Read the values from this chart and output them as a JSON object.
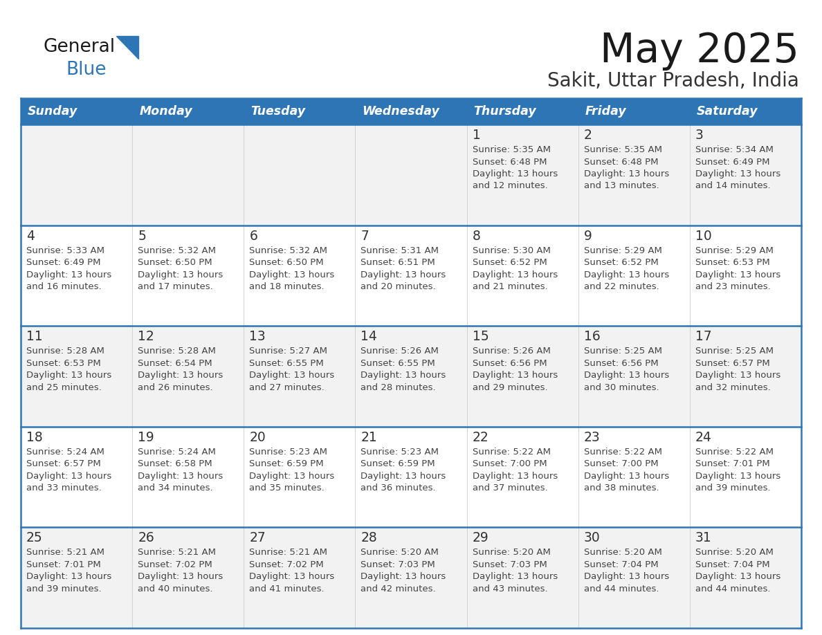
{
  "title": "May 2025",
  "subtitle": "Sakit, Uttar Pradesh, India",
  "days_of_week": [
    "Sunday",
    "Monday",
    "Tuesday",
    "Wednesday",
    "Thursday",
    "Friday",
    "Saturday"
  ],
  "header_bg": "#2E75B6",
  "header_text": "#FFFFFF",
  "row_bg_odd": "#F2F2F2",
  "row_bg_even": "#FFFFFF",
  "cell_border_color": "#2E75B6",
  "day_number_color": "#333333",
  "info_text_color": "#444444",
  "title_color": "#1a1a1a",
  "subtitle_color": "#333333",
  "logo_text_color": "#1a1a1a",
  "logo_blue_color": "#2E75B6",
  "calendar_data": [
    [
      {
        "day": null,
        "info": ""
      },
      {
        "day": null,
        "info": ""
      },
      {
        "day": null,
        "info": ""
      },
      {
        "day": null,
        "info": ""
      },
      {
        "day": 1,
        "info": "Sunrise: 5:35 AM\nSunset: 6:48 PM\nDaylight: 13 hours\nand 12 minutes."
      },
      {
        "day": 2,
        "info": "Sunrise: 5:35 AM\nSunset: 6:48 PM\nDaylight: 13 hours\nand 13 minutes."
      },
      {
        "day": 3,
        "info": "Sunrise: 5:34 AM\nSunset: 6:49 PM\nDaylight: 13 hours\nand 14 minutes."
      }
    ],
    [
      {
        "day": 4,
        "info": "Sunrise: 5:33 AM\nSunset: 6:49 PM\nDaylight: 13 hours\nand 16 minutes."
      },
      {
        "day": 5,
        "info": "Sunrise: 5:32 AM\nSunset: 6:50 PM\nDaylight: 13 hours\nand 17 minutes."
      },
      {
        "day": 6,
        "info": "Sunrise: 5:32 AM\nSunset: 6:50 PM\nDaylight: 13 hours\nand 18 minutes."
      },
      {
        "day": 7,
        "info": "Sunrise: 5:31 AM\nSunset: 6:51 PM\nDaylight: 13 hours\nand 20 minutes."
      },
      {
        "day": 8,
        "info": "Sunrise: 5:30 AM\nSunset: 6:52 PM\nDaylight: 13 hours\nand 21 minutes."
      },
      {
        "day": 9,
        "info": "Sunrise: 5:29 AM\nSunset: 6:52 PM\nDaylight: 13 hours\nand 22 minutes."
      },
      {
        "day": 10,
        "info": "Sunrise: 5:29 AM\nSunset: 6:53 PM\nDaylight: 13 hours\nand 23 minutes."
      }
    ],
    [
      {
        "day": 11,
        "info": "Sunrise: 5:28 AM\nSunset: 6:53 PM\nDaylight: 13 hours\nand 25 minutes."
      },
      {
        "day": 12,
        "info": "Sunrise: 5:28 AM\nSunset: 6:54 PM\nDaylight: 13 hours\nand 26 minutes."
      },
      {
        "day": 13,
        "info": "Sunrise: 5:27 AM\nSunset: 6:55 PM\nDaylight: 13 hours\nand 27 minutes."
      },
      {
        "day": 14,
        "info": "Sunrise: 5:26 AM\nSunset: 6:55 PM\nDaylight: 13 hours\nand 28 minutes."
      },
      {
        "day": 15,
        "info": "Sunrise: 5:26 AM\nSunset: 6:56 PM\nDaylight: 13 hours\nand 29 minutes."
      },
      {
        "day": 16,
        "info": "Sunrise: 5:25 AM\nSunset: 6:56 PM\nDaylight: 13 hours\nand 30 minutes."
      },
      {
        "day": 17,
        "info": "Sunrise: 5:25 AM\nSunset: 6:57 PM\nDaylight: 13 hours\nand 32 minutes."
      }
    ],
    [
      {
        "day": 18,
        "info": "Sunrise: 5:24 AM\nSunset: 6:57 PM\nDaylight: 13 hours\nand 33 minutes."
      },
      {
        "day": 19,
        "info": "Sunrise: 5:24 AM\nSunset: 6:58 PM\nDaylight: 13 hours\nand 34 minutes."
      },
      {
        "day": 20,
        "info": "Sunrise: 5:23 AM\nSunset: 6:59 PM\nDaylight: 13 hours\nand 35 minutes."
      },
      {
        "day": 21,
        "info": "Sunrise: 5:23 AM\nSunset: 6:59 PM\nDaylight: 13 hours\nand 36 minutes."
      },
      {
        "day": 22,
        "info": "Sunrise: 5:22 AM\nSunset: 7:00 PM\nDaylight: 13 hours\nand 37 minutes."
      },
      {
        "day": 23,
        "info": "Sunrise: 5:22 AM\nSunset: 7:00 PM\nDaylight: 13 hours\nand 38 minutes."
      },
      {
        "day": 24,
        "info": "Sunrise: 5:22 AM\nSunset: 7:01 PM\nDaylight: 13 hours\nand 39 minutes."
      }
    ],
    [
      {
        "day": 25,
        "info": "Sunrise: 5:21 AM\nSunset: 7:01 PM\nDaylight: 13 hours\nand 39 minutes."
      },
      {
        "day": 26,
        "info": "Sunrise: 5:21 AM\nSunset: 7:02 PM\nDaylight: 13 hours\nand 40 minutes."
      },
      {
        "day": 27,
        "info": "Sunrise: 5:21 AM\nSunset: 7:02 PM\nDaylight: 13 hours\nand 41 minutes."
      },
      {
        "day": 28,
        "info": "Sunrise: 5:20 AM\nSunset: 7:03 PM\nDaylight: 13 hours\nand 42 minutes."
      },
      {
        "day": 29,
        "info": "Sunrise: 5:20 AM\nSunset: 7:03 PM\nDaylight: 13 hours\nand 43 minutes."
      },
      {
        "day": 30,
        "info": "Sunrise: 5:20 AM\nSunset: 7:04 PM\nDaylight: 13 hours\nand 44 minutes."
      },
      {
        "day": 31,
        "info": "Sunrise: 5:20 AM\nSunset: 7:04 PM\nDaylight: 13 hours\nand 44 minutes."
      }
    ]
  ]
}
